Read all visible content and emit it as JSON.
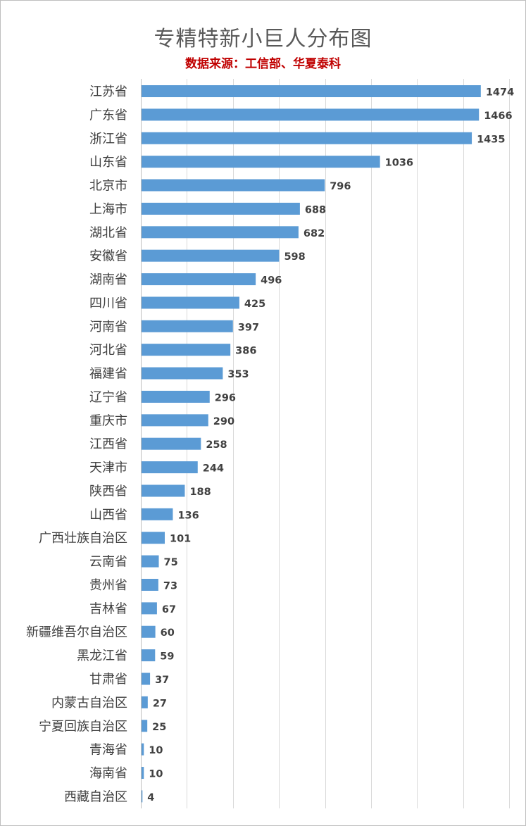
{
  "chart_data": {
    "type": "bar",
    "orientation": "horizontal",
    "title": "专精特新小巨人分布图",
    "subtitle": "数据来源：工信部、华夏泰科",
    "categories": [
      "江苏省",
      "广东省",
      "浙江省",
      "山东省",
      "北京市",
      "上海市",
      "湖北省",
      "安徽省",
      "湖南省",
      "四川省",
      "河南省",
      "河北省",
      "福建省",
      "辽宁省",
      "重庆市",
      "江西省",
      "天津市",
      "陕西省",
      "山西省",
      "广西壮族自治区",
      "云南省",
      "贵州省",
      "吉林省",
      "新疆维吾尔自治区",
      "黑龙江省",
      "甘肃省",
      "内蒙古自治区",
      "宁夏回族自治区",
      "青海省",
      "海南省",
      "西藏自治区"
    ],
    "values": [
      1474,
      1466,
      1435,
      1036,
      796,
      688,
      682,
      598,
      496,
      425,
      397,
      386,
      353,
      296,
      290,
      258,
      244,
      188,
      136,
      101,
      75,
      73,
      67,
      60,
      59,
      37,
      27,
      25,
      10,
      10,
      4
    ],
    "xlim": [
      0,
      1600
    ],
    "grid": true,
    "data_labels": true,
    "bar_color": "#5b9bd5"
  }
}
